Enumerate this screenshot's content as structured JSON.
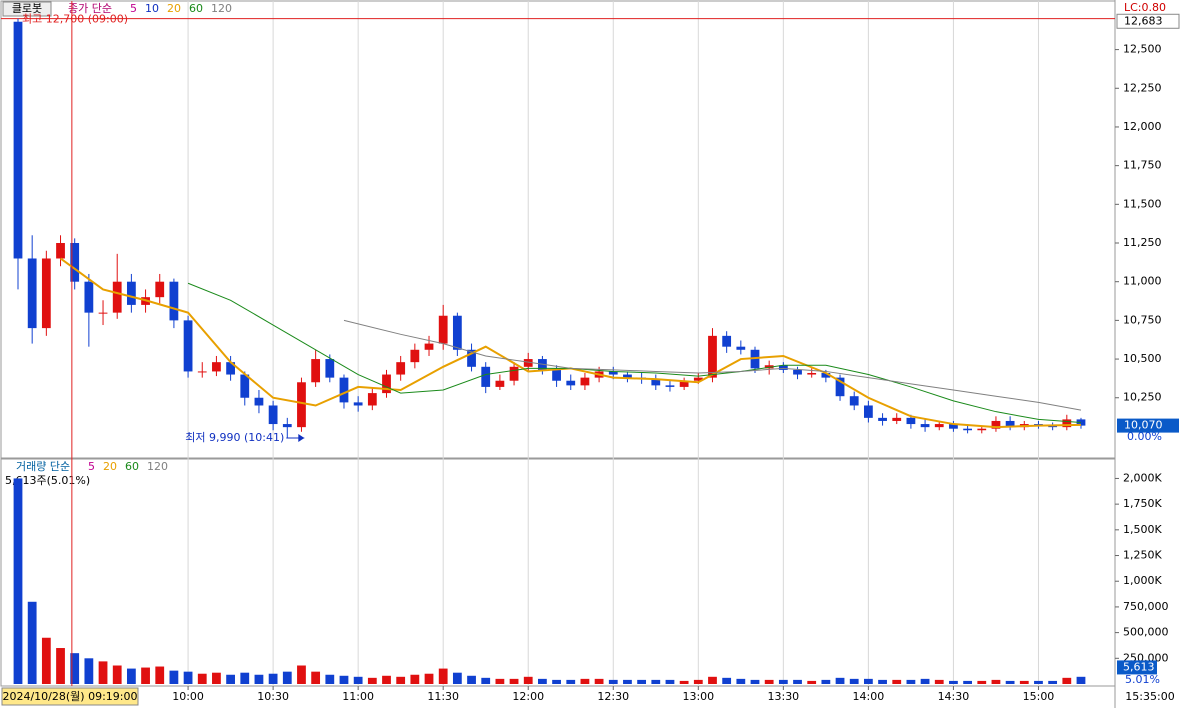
{
  "chart_data": {
    "type": "candlestick",
    "symbol": "클로봇",
    "indicator": "종가 단순",
    "ma_labels": [
      {
        "text": "5",
        "color": "#c0008f"
      },
      {
        "text": "10",
        "color": "#1030c0"
      },
      {
        "text": "20",
        "color": "#e8a000"
      },
      {
        "text": "60",
        "color": "#1a8a1a"
      },
      {
        "text": "120",
        "color": "#808080"
      }
    ],
    "lc_label": "LC:0.80",
    "x": [
      "09:00",
      "09:05",
      "09:10",
      "09:15",
      "09:20",
      "09:25",
      "09:30",
      "09:35",
      "09:40",
      "09:45",
      "09:50",
      "09:55",
      "10:00",
      "10:05",
      "10:10",
      "10:15",
      "10:20",
      "10:25",
      "10:30",
      "10:35",
      "10:40",
      "10:45",
      "10:50",
      "10:55",
      "11:00",
      "11:05",
      "11:10",
      "11:15",
      "11:20",
      "11:25",
      "11:30",
      "11:35",
      "11:40",
      "11:45",
      "11:50",
      "11:55",
      "12:00",
      "12:05",
      "12:10",
      "12:15",
      "12:20",
      "12:25",
      "12:30",
      "12:35",
      "12:40",
      "12:45",
      "12:50",
      "12:55",
      "13:00",
      "13:05",
      "13:10",
      "13:15",
      "13:20",
      "13:25",
      "13:30",
      "13:35",
      "13:40",
      "13:45",
      "13:50",
      "13:55",
      "14:00",
      "14:05",
      "14:10",
      "14:15",
      "14:20",
      "14:25",
      "14:30",
      "14:35",
      "14:40",
      "14:45",
      "14:50",
      "14:55",
      "15:00",
      "15:05",
      "15:10",
      "15:15"
    ],
    "open": [
      12680,
      11150,
      10700,
      11150,
      11250,
      11000,
      10800,
      10800,
      11000,
      10850,
      10900,
      11000,
      10750,
      10420,
      10420,
      10480,
      10400,
      10250,
      10200,
      10080,
      10060,
      10350,
      10500,
      10380,
      10220,
      10200,
      10280,
      10400,
      10480,
      10560,
      10600,
      10780,
      10560,
      10450,
      10320,
      10360,
      10450,
      10500,
      10430,
      10360,
      10330,
      10380,
      10420,
      10400,
      10380,
      10370,
      10330,
      10320,
      10360,
      10380,
      10650,
      10580,
      10560,
      10440,
      10460,
      10430,
      10400,
      10410,
      10380,
      10260,
      10200,
      10120,
      10100,
      10120,
      10080,
      10060,
      10080,
      10050,
      10040,
      10050,
      10100,
      10060,
      10080,
      10070,
      10060,
      10110
    ],
    "high": [
      12700,
      11300,
      11200,
      11300,
      11280,
      11050,
      10880,
      11180,
      11050,
      10950,
      11050,
      11020,
      10780,
      10480,
      10520,
      10520,
      10420,
      10300,
      10230,
      10120,
      10380,
      10560,
      10530,
      10400,
      10260,
      10310,
      10430,
      10520,
      10600,
      10650,
      10850,
      10800,
      10600,
      10480,
      10400,
      10480,
      10540,
      10520,
      10460,
      10400,
      10410,
      10450,
      10450,
      10420,
      10410,
      10400,
      10360,
      10380,
      10410,
      10700,
      10680,
      10620,
      10580,
      10490,
      10480,
      10450,
      10440,
      10430,
      10400,
      10290,
      10230,
      10150,
      10150,
      10140,
      10110,
      10100,
      10100,
      10080,
      10070,
      10130,
      10130,
      10100,
      10100,
      10090,
      10140,
      10120
    ],
    "low": [
      10950,
      10600,
      10650,
      11100,
      10950,
      10580,
      10720,
      10760,
      10800,
      10800,
      10860,
      10700,
      10380,
      10380,
      10390,
      10360,
      10200,
      10150,
      10040,
      9990,
      10030,
      10320,
      10350,
      10180,
      10160,
      10170,
      10250,
      10360,
      10440,
      10520,
      10560,
      10520,
      10420,
      10280,
      10300,
      10330,
      10420,
      10400,
      10320,
      10300,
      10300,
      10350,
      10370,
      10350,
      10340,
      10300,
      10290,
      10300,
      10340,
      10350,
      10540,
      10530,
      10410,
      10400,
      10410,
      10370,
      10380,
      10350,
      10230,
      10170,
      10090,
      10070,
      10080,
      10050,
      10030,
      10040,
      10030,
      10020,
      10020,
      10030,
      10040,
      10040,
      10050,
      10040,
      10040,
      10050
    ],
    "close": [
      11150,
      10700,
      11150,
      11250,
      11000,
      10800,
      10800,
      11000,
      10850,
      10900,
      11000,
      10750,
      10420,
      10420,
      10480,
      10400,
      10250,
      10200,
      10080,
      10060,
      10350,
      10500,
      10380,
      10220,
      10200,
      10280,
      10400,
      10480,
      10560,
      10600,
      10780,
      10560,
      10450,
      10320,
      10360,
      10450,
      10500,
      10430,
      10360,
      10330,
      10380,
      10420,
      10400,
      10380,
      10370,
      10330,
      10320,
      10360,
      10380,
      10650,
      10580,
      10560,
      10440,
      10460,
      10430,
      10400,
      10410,
      10380,
      10260,
      10200,
      10120,
      10100,
      10120,
      10080,
      10060,
      10080,
      10050,
      10040,
      10050,
      10100,
      10060,
      10080,
      10070,
      10060,
      10110,
      10070
    ],
    "up_color": "#e01010",
    "down_color": "#1040d0",
    "ma_lines": [
      {
        "color": "#e8a000",
        "x": [
          "09:15",
          "09:30",
          "09:45",
          "10:00",
          "10:15",
          "10:30",
          "10:45",
          "11:00",
          "11:15",
          "11:30",
          "11:45",
          "12:00",
          "12:15",
          "12:30",
          "12:45",
          "13:00",
          "13:15",
          "13:30",
          "13:45",
          "14:00",
          "14:15",
          "14:30",
          "14:45",
          "15:00",
          "15:15"
        ],
        "values": [
          11150,
          10950,
          10880,
          10800,
          10480,
          10250,
          10200,
          10320,
          10300,
          10450,
          10580,
          10420,
          10440,
          10380,
          10370,
          10350,
          10500,
          10520,
          10410,
          10250,
          10130,
          10080,
          10060,
          10070,
          10075
        ]
      },
      {
        "color": "#1a8a1a",
        "x": [
          "10:00",
          "10:15",
          "10:30",
          "10:45",
          "11:00",
          "11:15",
          "11:30",
          "11:45",
          "12:00",
          "12:15",
          "12:30",
          "12:45",
          "13:00",
          "13:15",
          "13:30",
          "13:45",
          "14:00",
          "14:15",
          "14:30",
          "14:45",
          "15:00",
          "15:15"
        ],
        "values": [
          10990,
          10880,
          10720,
          10560,
          10400,
          10280,
          10300,
          10400,
          10440,
          10440,
          10420,
          10410,
          10390,
          10420,
          10460,
          10460,
          10400,
          10320,
          10230,
          10160,
          10110,
          10090
        ]
      },
      {
        "color": "#808080",
        "x": [
          "10:55",
          "11:15",
          "11:30",
          "11:45",
          "12:00",
          "12:15",
          "12:30",
          "12:45",
          "13:00",
          "13:15",
          "13:30",
          "13:45",
          "14:00",
          "14:15",
          "14:30",
          "14:45",
          "15:00",
          "15:15"
        ],
        "values": [
          10750,
          10660,
          10600,
          10520,
          10480,
          10440,
          10430,
          10420,
          10410,
          10420,
          10440,
          10420,
          10380,
          10340,
          10300,
          10260,
          10220,
          10170
        ]
      }
    ],
    "xlim": [
      "09:00",
      "15:27"
    ],
    "xticks": [
      "10:00",
      "10:30",
      "11:00",
      "11:30",
      "12:00",
      "12:30",
      "13:00",
      "13:30",
      "14:00",
      "14:30",
      "15:00"
    ],
    "ylim": [
      9880,
      12730
    ],
    "yticks": [
      {
        "value": 10250,
        "label": "10,250"
      },
      {
        "value": 10500,
        "label": "10,500"
      },
      {
        "value": 10750,
        "label": "10,750"
      },
      {
        "value": 11000,
        "label": "11,000"
      },
      {
        "value": 11250,
        "label": "11,250"
      },
      {
        "value": 11500,
        "label": "11,500"
      },
      {
        "value": 11750,
        "label": "11,750"
      },
      {
        "value": 12000,
        "label": "12,000"
      },
      {
        "value": 12250,
        "label": "12,250"
      },
      {
        "value": 12500,
        "label": "12,500"
      }
    ],
    "high_annotation": {
      "text": "최고 12,700 (09:00)",
      "value": 12700
    },
    "low_annotation": {
      "text": "최저 9,990 (10:41)",
      "value": 9990,
      "x": "10:41"
    },
    "ref_price": {
      "value": 12683,
      "label": "12,683"
    },
    "last_price": {
      "value": 10070,
      "label": "10,070"
    },
    "change_label": "0.00%",
    "cursor": {
      "x": "09:19",
      "label": "2024/10/28(월) 09:19:00"
    },
    "end_time_label": "15:35:00",
    "volume": {
      "title": "거래량 단순",
      "ma_labels": [
        {
          "text": "5",
          "color": "#c0008f"
        },
        {
          "text": "20",
          "color": "#e8a000"
        },
        {
          "text": "60",
          "color": "#1a8a1a"
        },
        {
          "text": "120",
          "color": "#808080"
        }
      ],
      "info": "5,613주(5.01%)",
      "values": [
        2000000,
        800000,
        450000,
        350000,
        300000,
        250000,
        220000,
        180000,
        150000,
        160000,
        170000,
        130000,
        120000,
        100000,
        110000,
        90000,
        110000,
        90000,
        100000,
        120000,
        180000,
        120000,
        90000,
        80000,
        70000,
        60000,
        80000,
        70000,
        90000,
        100000,
        150000,
        110000,
        80000,
        60000,
        50000,
        50000,
        70000,
        50000,
        40000,
        40000,
        50000,
        50000,
        40000,
        40000,
        40000,
        40000,
        40000,
        30000,
        40000,
        70000,
        60000,
        50000,
        40000,
        40000,
        40000,
        40000,
        30000,
        40000,
        60000,
        50000,
        50000,
        40000,
        40000,
        40000,
        50000,
        40000,
        30000,
        30000,
        30000,
        40000,
        30000,
        30000,
        30000,
        30000,
        60000,
        70000
      ],
      "ylim": [
        0,
        2160000
      ],
      "yticks": [
        {
          "value": 250000,
          "label": "250,000"
        },
        {
          "value": 500000,
          "label": "500,000"
        },
        {
          "value": 750000,
          "label": "750,000"
        },
        {
          "value": 1000000,
          "label": "1,000K"
        },
        {
          "value": 1250000,
          "label": "1,250K"
        },
        {
          "value": 1500000,
          "label": "1,500K"
        },
        {
          "value": 1750000,
          "label": "1,750K"
        },
        {
          "value": 2000000,
          "label": "2,000K"
        }
      ],
      "last_volume": {
        "value": 5613,
        "label": "5,613"
      },
      "ratio_label": "5.01%"
    }
  }
}
